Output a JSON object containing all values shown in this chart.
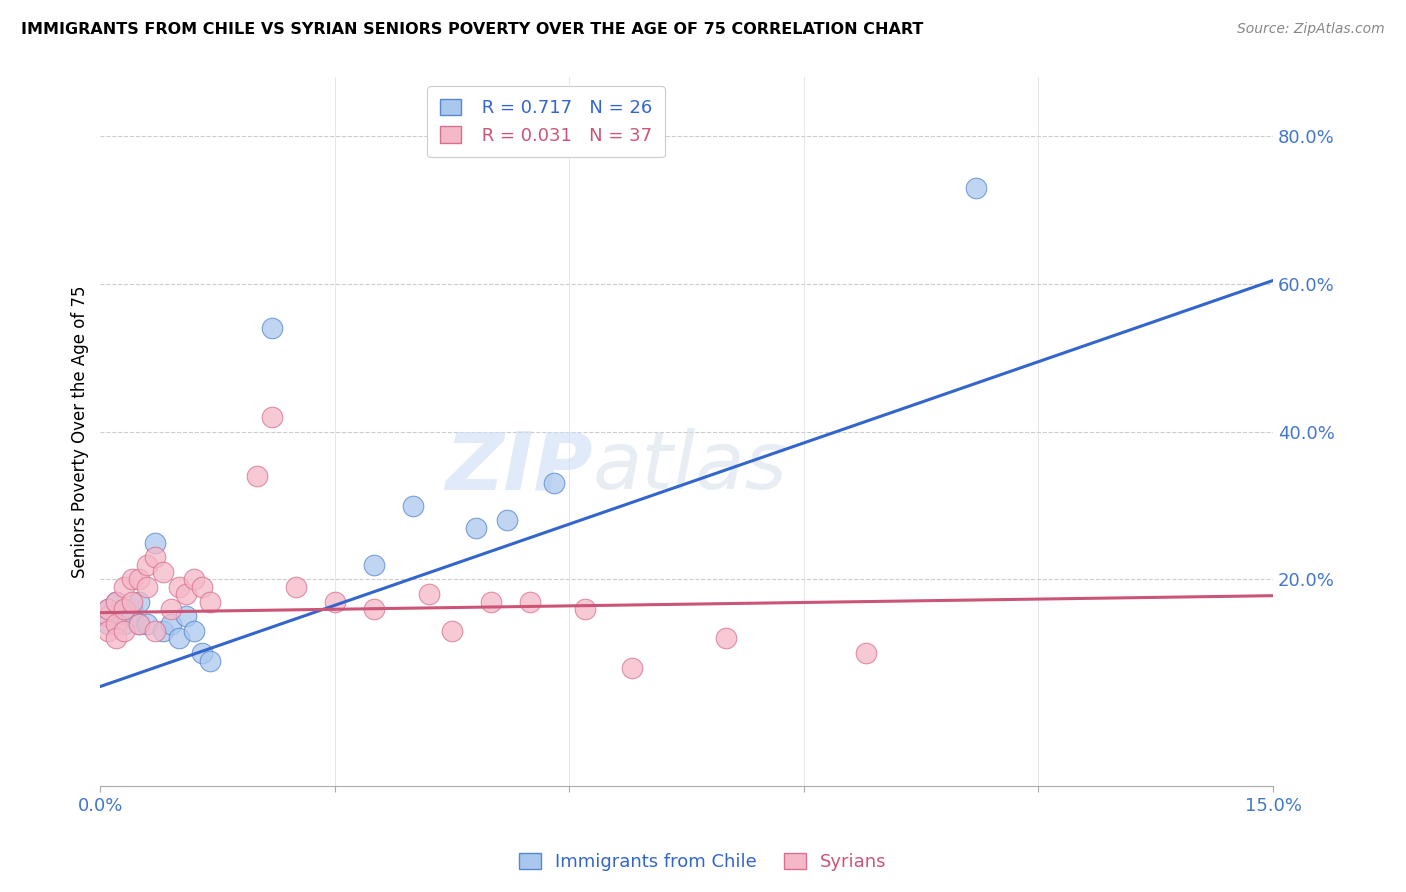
{
  "title": "IMMIGRANTS FROM CHILE VS SYRIAN SENIORS POVERTY OVER THE AGE OF 75 CORRELATION CHART",
  "source": "Source: ZipAtlas.com",
  "ylabel": "Seniors Poverty Over the Age of 75",
  "xlim": [
    0.0,
    0.15
  ],
  "ylim": [
    -0.08,
    0.88
  ],
  "xticks": [
    0.0,
    0.03,
    0.06,
    0.09,
    0.12,
    0.15
  ],
  "xticklabels": [
    "0.0%",
    "",
    "",
    "",
    "",
    "15.0%"
  ],
  "ytick_positions": [
    0.0,
    0.2,
    0.4,
    0.6,
    0.8
  ],
  "ytick_labels": [
    "",
    "20.0%",
    "40.0%",
    "60.0%",
    "80.0%"
  ],
  "legend_r1": "R = 0.717",
  "legend_n1": "N = 26",
  "legend_r2": "R = 0.031",
  "legend_n2": "N = 37",
  "legend1_label": "Immigrants from Chile",
  "legend2_label": "Syrians",
  "blue_fill": "#aac8ee",
  "blue_edge": "#5588cc",
  "pink_fill": "#f5b8c8",
  "pink_edge": "#d87090",
  "blue_line": "#3366cc",
  "pink_line": "#cc5577",
  "watermark_color": "#ccddf5",
  "chile_x": [
    0.001,
    0.001,
    0.002,
    0.002,
    0.003,
    0.003,
    0.004,
    0.004,
    0.005,
    0.005,
    0.006,
    0.007,
    0.008,
    0.009,
    0.01,
    0.011,
    0.012,
    0.013,
    0.014,
    0.022,
    0.035,
    0.04,
    0.048,
    0.052,
    0.058,
    0.112
  ],
  "chile_y": [
    0.14,
    0.16,
    0.15,
    0.17,
    0.16,
    0.14,
    0.16,
    0.15,
    0.17,
    0.14,
    0.14,
    0.25,
    0.13,
    0.14,
    0.12,
    0.15,
    0.13,
    0.1,
    0.09,
    0.54,
    0.22,
    0.3,
    0.27,
    0.28,
    0.33,
    0.73
  ],
  "syrian_x": [
    0.001,
    0.001,
    0.001,
    0.002,
    0.002,
    0.002,
    0.003,
    0.003,
    0.003,
    0.004,
    0.004,
    0.005,
    0.005,
    0.006,
    0.006,
    0.007,
    0.007,
    0.008,
    0.009,
    0.01,
    0.011,
    0.012,
    0.013,
    0.014,
    0.02,
    0.022,
    0.025,
    0.03,
    0.035,
    0.042,
    0.045,
    0.05,
    0.055,
    0.062,
    0.068,
    0.08,
    0.098
  ],
  "syrian_y": [
    0.15,
    0.13,
    0.16,
    0.14,
    0.17,
    0.12,
    0.19,
    0.16,
    0.13,
    0.2,
    0.17,
    0.2,
    0.14,
    0.22,
    0.19,
    0.23,
    0.13,
    0.21,
    0.16,
    0.19,
    0.18,
    0.2,
    0.19,
    0.17,
    0.34,
    0.42,
    0.19,
    0.17,
    0.16,
    0.18,
    0.13,
    0.17,
    0.17,
    0.16,
    0.08,
    0.12,
    0.1
  ],
  "blue_trend_x0": 0.0,
  "blue_trend_y0": 0.055,
  "blue_trend_x1": 0.15,
  "blue_trend_y1": 0.605,
  "pink_trend_x0": 0.0,
  "pink_trend_y0": 0.155,
  "pink_trend_x1": 0.15,
  "pink_trend_y1": 0.178
}
